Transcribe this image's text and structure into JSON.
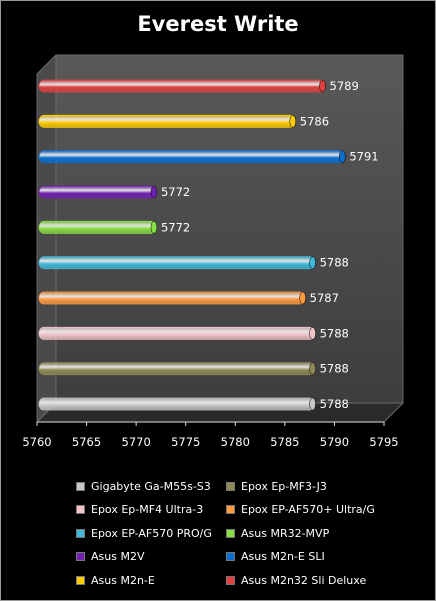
{
  "title": "Everest Write",
  "chart_data": {
    "type": "bar",
    "orientation": "horizontal",
    "title": "Everest Write",
    "xlim": [
      5760,
      5795
    ],
    "x_ticks": [
      "5760",
      "5765",
      "5770",
      "5775",
      "5780",
      "5785",
      "5790",
      "5795"
    ],
    "grid": false,
    "legend_placement": "bottom",
    "series": [
      {
        "name": "Gigabyte Ga-M55s-S3",
        "value": 5788,
        "label": "5788",
        "color": "#c8c8c8"
      },
      {
        "name": "Epox Ep-MF3-J3",
        "value": 5788,
        "label": "5788",
        "color": "#8f8a55"
      },
      {
        "name": "Epox Ep-MF4 Ultra-3",
        "value": 5788,
        "label": "5788",
        "color": "#f2c4c8"
      },
      {
        "name": "Epox EP-AF570+ Ultra/G",
        "value": 5787,
        "label": "5787",
        "color": "#ff9a40"
      },
      {
        "name": "Epox EP-AF570 PRO/G",
        "value": 5788,
        "label": "5788",
        "color": "#3fb8d8"
      },
      {
        "name": "Asus MR32-MVP",
        "value": 5772,
        "label": "5772",
        "color": "#88dd44"
      },
      {
        "name": "Asus M2V",
        "value": 5772,
        "label": "5772",
        "color": "#7020b0"
      },
      {
        "name": "Asus M2n-E SLI",
        "value": 5791,
        "label": "5791",
        "color": "#0a6fd0"
      },
      {
        "name": "Asus M2n-E",
        "value": 5786,
        "label": "5786",
        "color": "#ffcc00"
      },
      {
        "name": "Asus M2n32 Sli Deluxe",
        "value": 5789,
        "label": "5789",
        "color": "#e04040"
      }
    ]
  }
}
